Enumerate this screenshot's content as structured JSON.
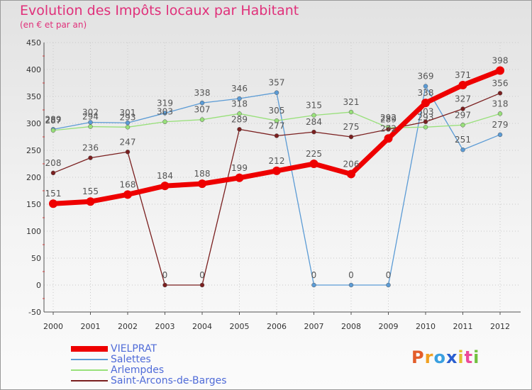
{
  "chart_data": {
    "type": "line",
    "title": "Evolution des Impôts locaux par Habitant",
    "subtitle": "(en € et par an)",
    "categories": [
      "2000",
      "2001",
      "2002",
      "2003",
      "2004",
      "2005",
      "2006",
      "2007",
      "2008",
      "2009",
      "2010",
      "2011",
      "2012"
    ],
    "ylim": [
      -50,
      450
    ],
    "yticks": [
      -50,
      0,
      50,
      100,
      150,
      200,
      250,
      300,
      350,
      400,
      450
    ],
    "grid": "dotted",
    "series": [
      {
        "name": "VIELPRAT",
        "color": "#ee0000",
        "values": [
          151,
          155,
          168,
          184,
          188,
          199,
          212,
          225,
          206,
          272,
          338,
          371,
          398
        ]
      },
      {
        "name": "Salettes",
        "color": "#5b9bd5",
        "values": [
          289,
          302,
          301,
          319,
          338,
          346,
          357,
          0,
          0,
          0,
          369,
          251,
          279
        ]
      },
      {
        "name": "Arlempdes",
        "color": "#98e07a",
        "values": [
          287,
          294,
          293,
          303,
          307,
          318,
          305,
          315,
          321,
          292,
          293,
          297,
          318
        ]
      },
      {
        "name": "Saint-Arcons-de-Barges",
        "color": "#7a1f1f",
        "values": [
          208,
          236,
          247,
          0,
          0,
          289,
          277,
          284,
          275,
          289,
          303,
          327,
          356
        ]
      }
    ]
  },
  "brand": {
    "text": "Proxiti",
    "letters": [
      "P",
      "r",
      "o",
      "x",
      "i",
      "t",
      "i"
    ],
    "colors": [
      "#e35d2a",
      "#f0a020",
      "#3aa0e0",
      "#2a5fd0",
      "#e0c030",
      "#ec4a9a",
      "#72c040"
    ]
  }
}
